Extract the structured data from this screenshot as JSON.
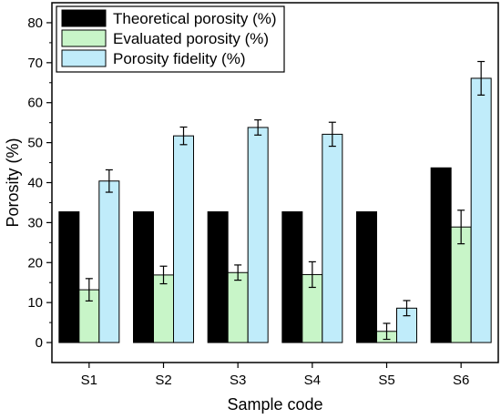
{
  "chart_data": {
    "type": "bar",
    "title": "",
    "xlabel": "Sample code",
    "ylabel": "Porosity (%)",
    "categories": [
      "S1",
      "S2",
      "S3",
      "S4",
      "S5",
      "S6"
    ],
    "ylim": [
      -5,
      85
    ],
    "yticks": [
      0,
      10,
      20,
      30,
      40,
      50,
      60,
      70,
      80
    ],
    "grid": false,
    "legend_position": "top-left",
    "series": [
      {
        "name": "Theoretical porosity (%)",
        "color": "#000000",
        "values": [
          32.7,
          32.7,
          32.7,
          32.7,
          32.7,
          43.7
        ],
        "errors": null
      },
      {
        "name": "Evaluated porosity (%)",
        "color": "#c8f5c8",
        "values": [
          13.2,
          16.9,
          17.5,
          17.0,
          2.8,
          28.9
        ],
        "errors": [
          2.8,
          2.2,
          1.9,
          3.2,
          2.0,
          4.2
        ]
      },
      {
        "name": "Porosity fidelity (%)",
        "color": "#c0ecfa",
        "values": [
          40.4,
          51.7,
          53.8,
          52.1,
          8.6,
          66.1
        ],
        "errors": [
          2.8,
          2.2,
          1.9,
          3.0,
          1.9,
          4.2
        ]
      }
    ]
  }
}
